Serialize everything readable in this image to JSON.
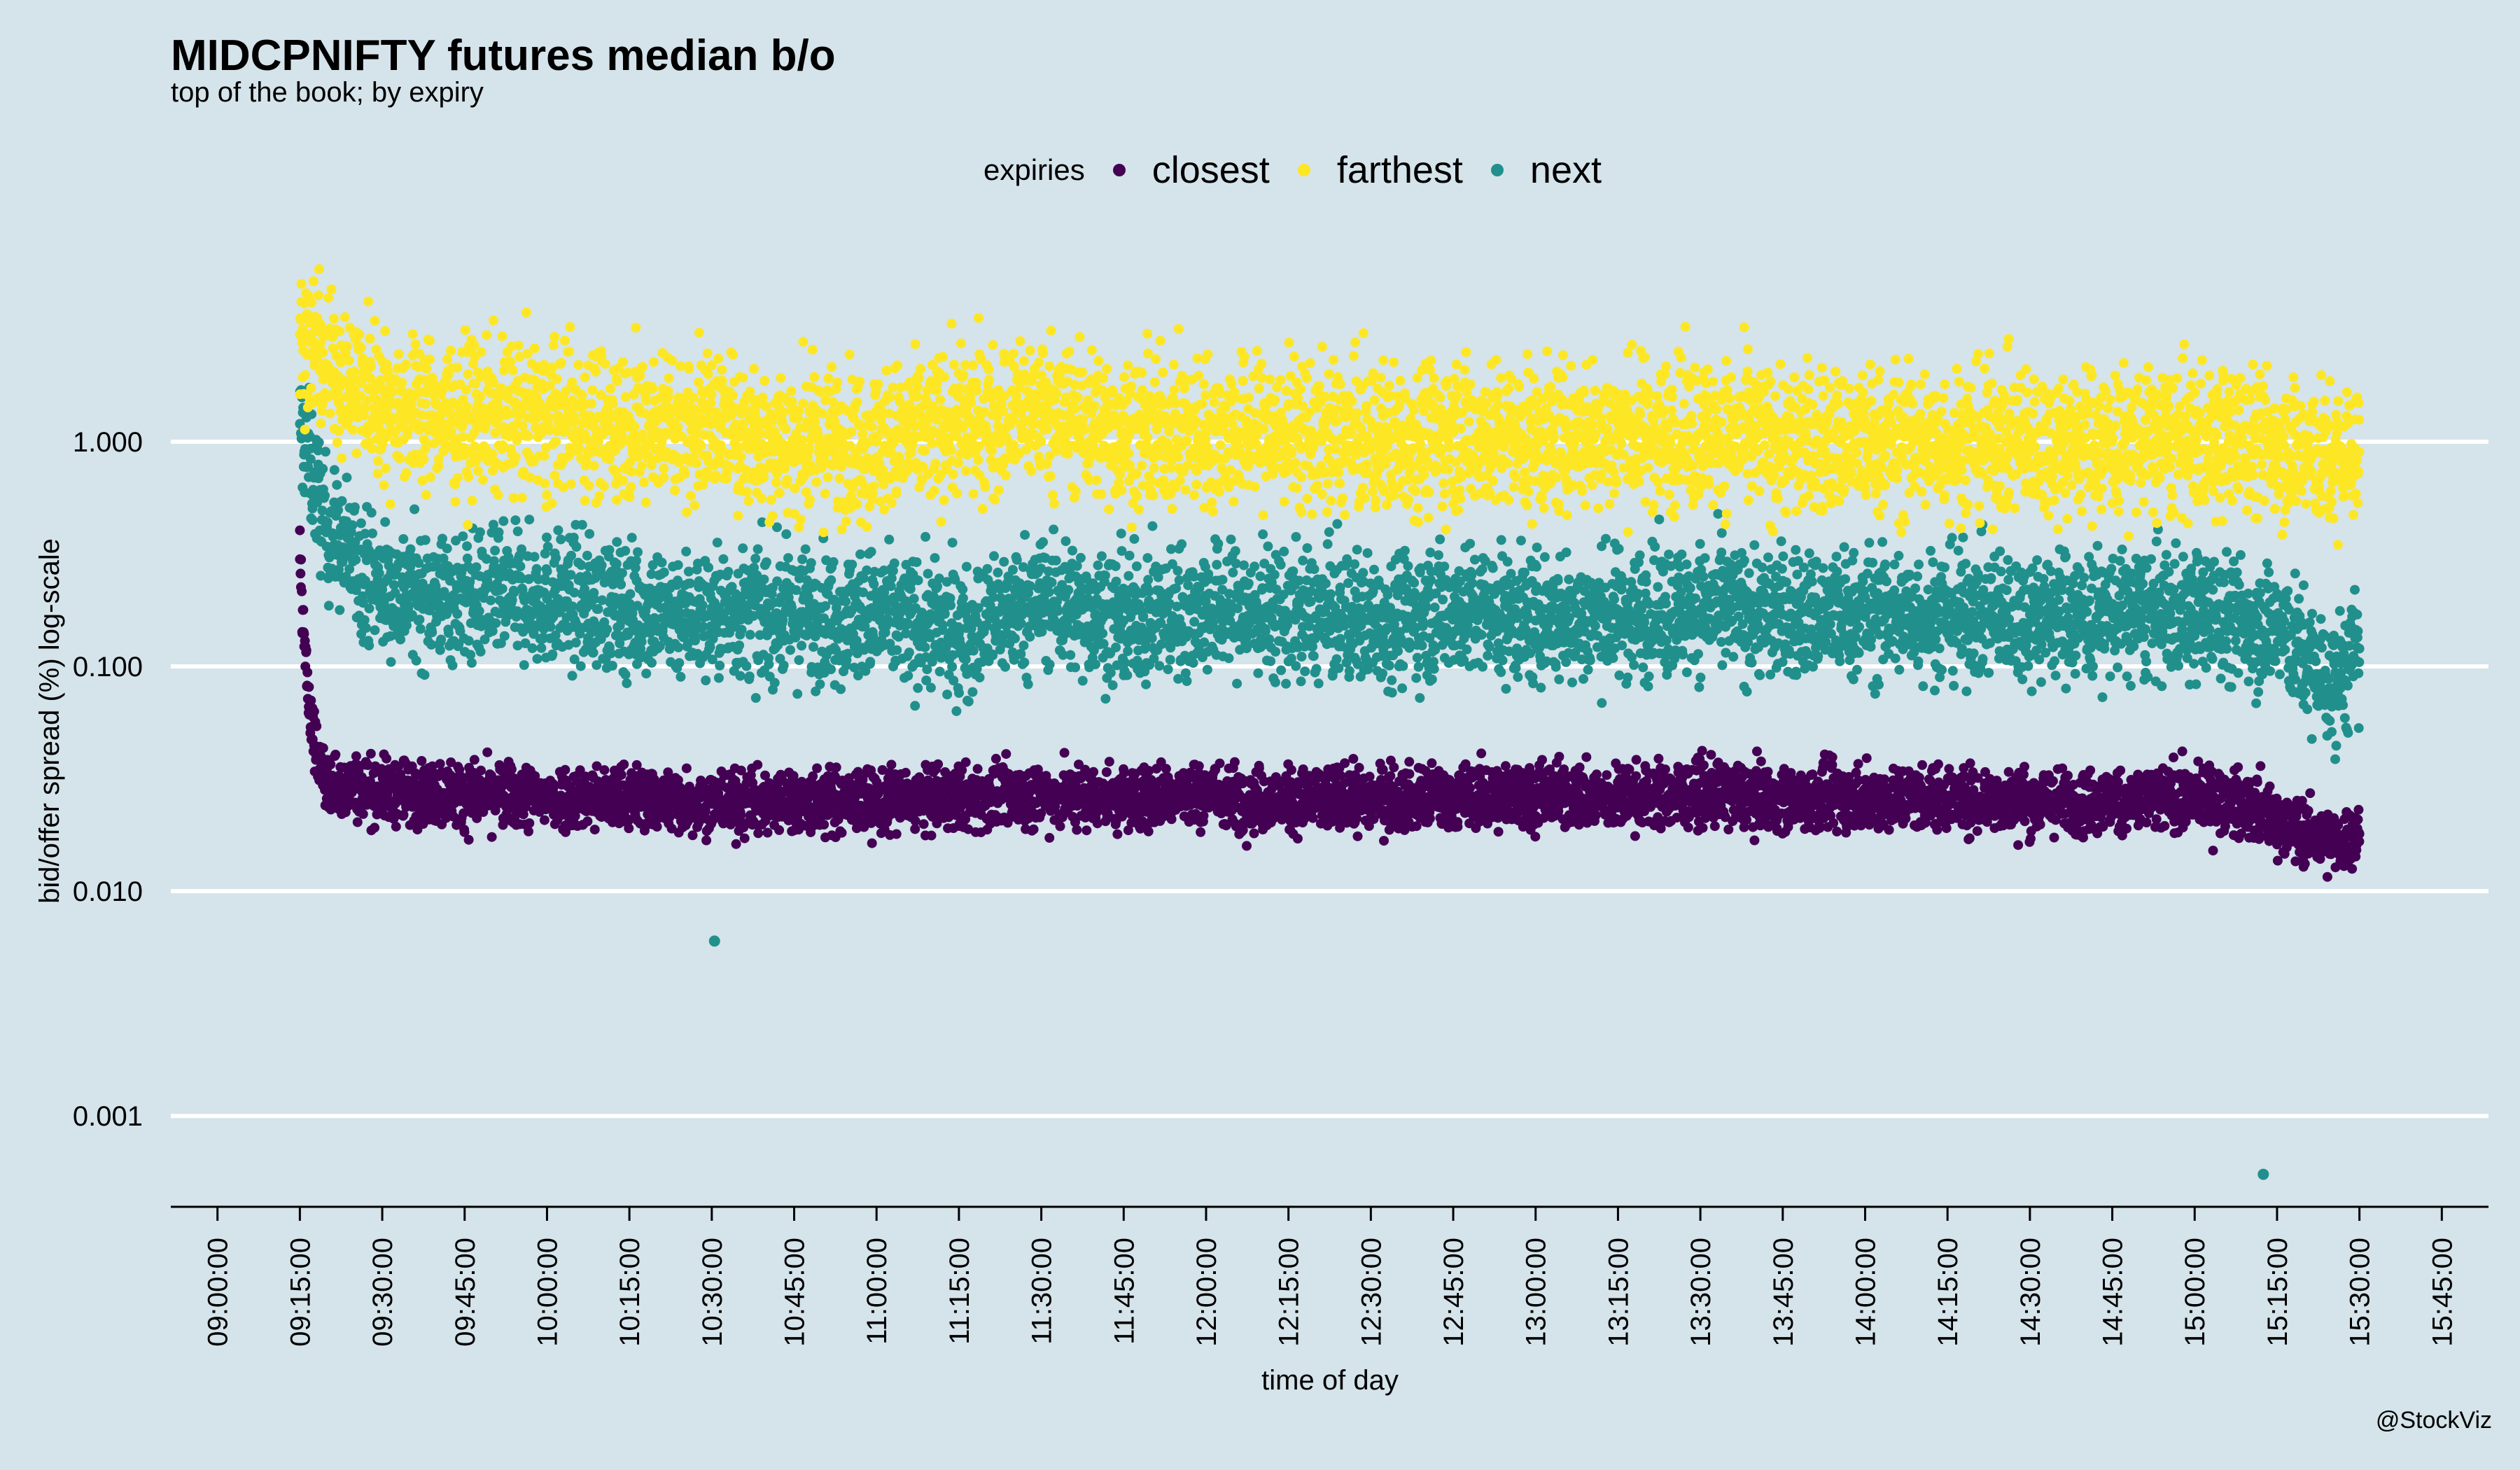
{
  "title": "MIDCPNIFTY futures median b/o",
  "subtitle": "top of the book; by expiry",
  "watermark": "@StockViz",
  "legend": {
    "title": "expiries",
    "items": [
      {
        "label": "closest",
        "color": "#440154"
      },
      {
        "label": "farthest",
        "color": "#fde725"
      },
      {
        "label": "next",
        "color": "#21908c"
      }
    ]
  },
  "chart_data": {
    "type": "scatter",
    "title": "MIDCPNIFTY futures median b/o",
    "subtitle": "top of the book; by expiry",
    "xlabel": "time of day",
    "ylabel": "bid/offer spread (%) log-scale",
    "y_scale": "log10",
    "ylim": [
      0.0004,
      7.5
    ],
    "xlim": [
      "09:00:00",
      "15:45:00"
    ],
    "x_ticks": [
      "09:00:00",
      "09:15:00",
      "09:30:00",
      "09:45:00",
      "10:00:00",
      "10:15:00",
      "10:30:00",
      "10:45:00",
      "11:00:00",
      "11:15:00",
      "11:30:00",
      "11:45:00",
      "12:00:00",
      "12:15:00",
      "12:30:00",
      "12:45:00",
      "13:00:00",
      "13:15:00",
      "13:30:00",
      "13:45:00",
      "14:00:00",
      "14:15:00",
      "14:30:00",
      "14:45:00",
      "15:00:00",
      "15:15:00",
      "15:30:00",
      "15:45:00"
    ],
    "y_ticks": [
      {
        "value": 0.001,
        "label": "0.001"
      },
      {
        "value": 0.01,
        "label": "0.010"
      },
      {
        "value": 0.1,
        "label": "0.100"
      },
      {
        "value": 1,
        "label": "1.000"
      }
    ],
    "grid": "horizontal major lines",
    "legend_position": "top",
    "series": [
      {
        "name": "closest",
        "color": "#440154",
        "x": [
          "09:15:00",
          "09:16:00",
          "09:18:00",
          "09:20:00",
          "09:30:00",
          "09:45:00",
          "10:00:00",
          "10:15:00",
          "10:30:00",
          "10:45:00",
          "11:00:00",
          "11:15:00",
          "11:30:00",
          "11:45:00",
          "12:00:00",
          "12:15:00",
          "12:30:00",
          "12:45:00",
          "13:00:00",
          "13:15:00",
          "13:30:00",
          "13:45:00",
          "14:00:00",
          "14:15:00",
          "14:30:00",
          "14:45:00",
          "15:00:00",
          "15:10:00",
          "15:15:00",
          "15:20:00",
          "15:25:00",
          "15:30:00"
        ],
        "y": [
          0.3,
          0.1,
          0.04,
          0.03,
          0.028,
          0.027,
          0.026,
          0.026,
          0.025,
          0.025,
          0.025,
          0.026,
          0.027,
          0.026,
          0.027,
          0.025,
          0.026,
          0.026,
          0.027,
          0.026,
          0.027,
          0.026,
          0.026,
          0.026,
          0.025,
          0.025,
          0.026,
          0.024,
          0.021,
          0.018,
          0.016,
          0.018
        ]
      },
      {
        "name": "farthest",
        "color": "#fde725",
        "x": [
          "09:15:00",
          "09:20:00",
          "09:30:00",
          "09:45:00",
          "10:00:00",
          "10:15:00",
          "10:30:00",
          "10:45:00",
          "11:00:00",
          "11:15:00",
          "11:30:00",
          "11:45:00",
          "12:00:00",
          "12:15:00",
          "12:30:00",
          "12:45:00",
          "13:00:00",
          "13:15:00",
          "13:30:00",
          "13:45:00",
          "14:00:00",
          "14:15:00",
          "14:30:00",
          "14:45:00",
          "15:00:00",
          "15:15:00",
          "15:25:00",
          "15:30:00"
        ],
        "y": [
          3.0,
          2.2,
          1.5,
          1.3,
          1.3,
          1.2,
          1.2,
          1.0,
          1.0,
          1.2,
          1.4,
          1.1,
          1.1,
          1.1,
          1.0,
          1.1,
          1.0,
          1.1,
          1.1,
          1.0,
          1.0,
          1.0,
          1.0,
          1.0,
          1.0,
          1.0,
          0.8,
          0.9
        ]
      },
      {
        "name": "next",
        "color": "#21908c",
        "x": [
          "09:15:00",
          "09:20:00",
          "09:30:00",
          "09:45:00",
          "10:00:00",
          "10:15:00",
          "10:30:00",
          "10:45:00",
          "11:00:00",
          "11:15:00",
          "11:30:00",
          "11:45:00",
          "12:00:00",
          "12:15:00",
          "12:30:00",
          "12:45:00",
          "13:00:00",
          "13:15:00",
          "13:30:00",
          "13:45:00",
          "14:00:00",
          "14:15:00",
          "14:30:00",
          "14:45:00",
          "15:00:00",
          "15:15:00",
          "15:25:00",
          "15:30:00"
        ],
        "y": [
          1.2,
          0.4,
          0.22,
          0.2,
          0.2,
          0.18,
          0.17,
          0.17,
          0.17,
          0.14,
          0.2,
          0.16,
          0.18,
          0.17,
          0.16,
          0.18,
          0.16,
          0.17,
          0.18,
          0.17,
          0.17,
          0.17,
          0.17,
          0.17,
          0.17,
          0.15,
          0.08,
          0.12
        ]
      }
    ],
    "outliers": [
      {
        "series": "next",
        "x": "10:30:30",
        "y": 0.006
      },
      {
        "series": "next",
        "x": "15:12:30",
        "y": 0.00055
      }
    ]
  }
}
